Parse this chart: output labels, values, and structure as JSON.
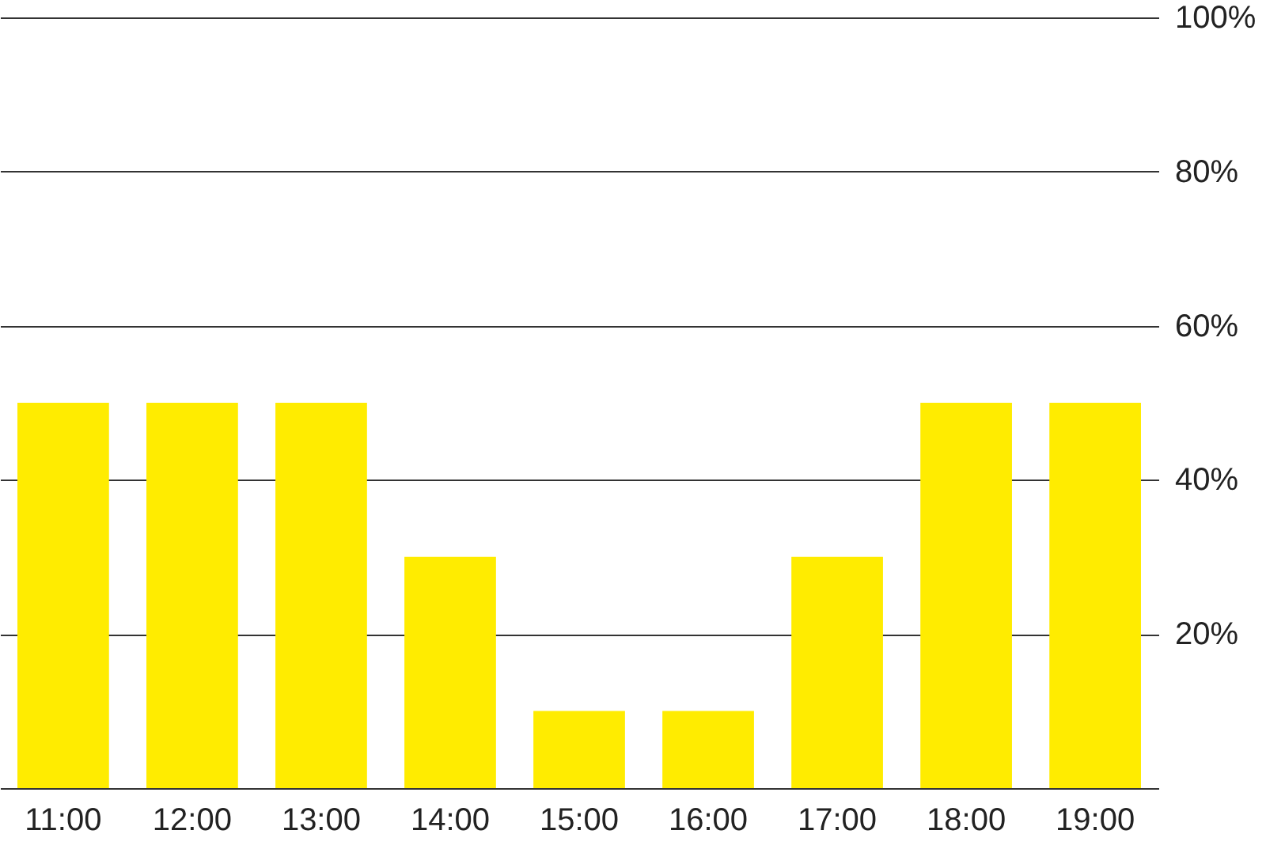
{
  "chart_data": {
    "type": "bar",
    "categories": [
      "11:00",
      "12:00",
      "13:00",
      "14:00",
      "15:00",
      "16:00",
      "17:00",
      "18:00",
      "19:00"
    ],
    "values": [
      50,
      50,
      50,
      30,
      10,
      10,
      30,
      50,
      50
    ],
    "color": "#ffec00",
    "ylim": [
      0,
      100
    ],
    "yticks": [
      {
        "value": 0,
        "label": null
      },
      {
        "value": 20,
        "label": "20%"
      },
      {
        "value": 40,
        "label": "40%"
      },
      {
        "value": 60,
        "label": "60%"
      },
      {
        "value": 80,
        "label": "80%"
      },
      {
        "value": 100,
        "label": "100%"
      }
    ],
    "grid": "y"
  }
}
